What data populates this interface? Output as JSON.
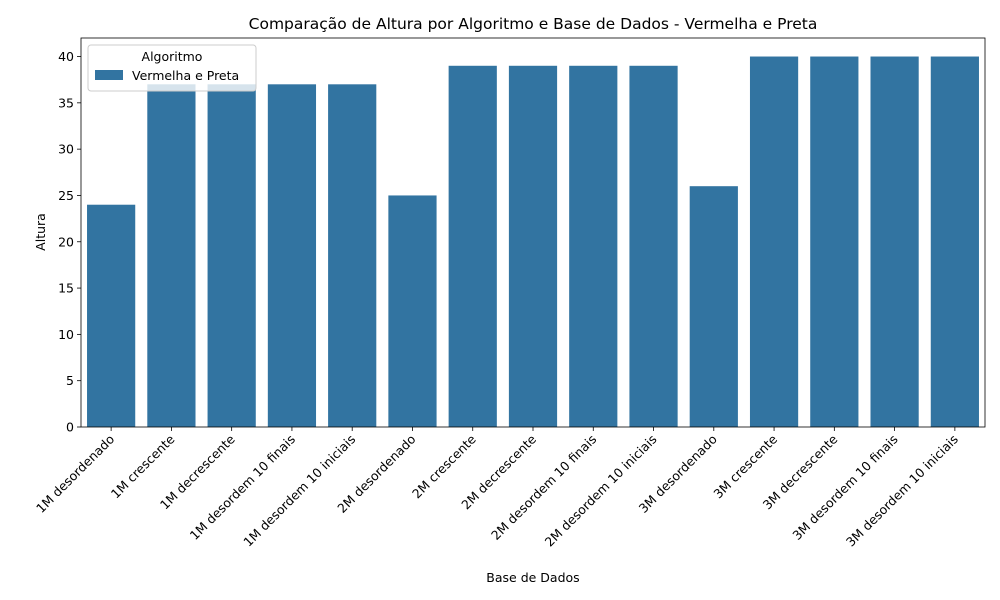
{
  "chart_data": {
    "type": "bar",
    "title": "Comparação de Altura por Algoritmo e Base de Dados - Vermelha e Preta",
    "xlabel": "Base de Dados",
    "ylabel": "Altura",
    "categories": [
      "1M desordenado",
      "1M crescente",
      "1M decrescente",
      "1M desordem 10 finais",
      "1M desordem 10 iniciais",
      "2M desordenado",
      "2M crescente",
      "2M decrescente",
      "2M desordem 10 finais",
      "2M desordem 10 iniciais",
      "3M desordenado",
      "3M crescente",
      "3M decrescente",
      "3M desordem 10 finais",
      "3M desordem 10 iniciais"
    ],
    "series": [
      {
        "name": "Vermelha e Preta",
        "color": "#3274a1",
        "values": [
          24,
          37,
          37,
          37,
          37,
          25,
          39,
          39,
          39,
          39,
          26,
          40,
          40,
          40,
          40
        ]
      }
    ],
    "ylim": [
      0,
      42
    ],
    "yticks": [
      0,
      5,
      10,
      15,
      20,
      25,
      30,
      35,
      40
    ],
    "legend": {
      "title": "Algoritmo",
      "position": "top-left"
    },
    "grid": false
  }
}
